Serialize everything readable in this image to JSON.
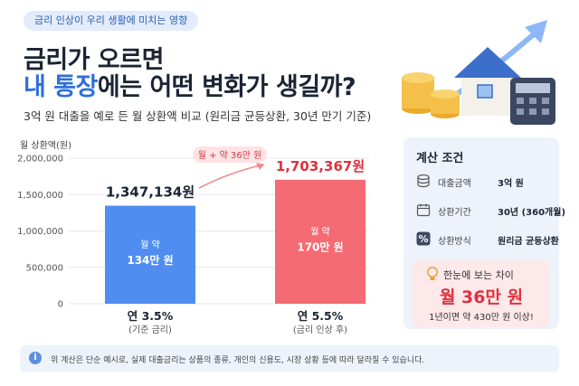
{
  "header": {
    "tag": "금리 인상이 우리 생활에 미치는 영향",
    "title_line1": "금리가 오르면",
    "title_line2_highlight": "내 통장",
    "title_line2_rest": "에는 어떤 변화가 생길까?",
    "subtitle": "3억 원 대출을 예로 든 월 상환액 비교 (원리금 균등상환, 30년 만기 기준)"
  },
  "chart_data": {
    "type": "bar",
    "ylabel": "월 상환액(원)",
    "ylim": [
      0,
      2000000
    ],
    "yticks": [
      "2,000,000",
      "1,500,000",
      "1,000,000",
      "500,000",
      "0"
    ],
    "ytick_values": [
      2000000,
      1500000,
      1000000,
      500000,
      0
    ],
    "categories": [
      "연 3.5%",
      "연 5.5%"
    ],
    "category_notes": [
      "(기준 금리)",
      "(금리 인상 후)"
    ],
    "values": [
      1347134,
      1703367
    ],
    "value_labels": [
      "1,347,134원",
      "1,703,367원"
    ],
    "bar_inner_top": [
      "월 약",
      "월 약"
    ],
    "bar_inner_bottom": [
      "134만 원",
      "170만 원"
    ],
    "colors": [
      "#4f8ef0",
      "#f46b73"
    ],
    "difference_label": "월 + 약 36만 원",
    "grid": true
  },
  "panel": {
    "title": "계산 조건",
    "rows": [
      {
        "label": "대출금액",
        "value": "3억 원",
        "icon": "coins-icon"
      },
      {
        "label": "상환기간",
        "value": "30년 (360개월)",
        "icon": "calendar-icon"
      },
      {
        "label": "상환방식",
        "value": "원리금 균등상환",
        "icon": "percent-icon"
      }
    ],
    "highlight_title": "한눈에 보는 차이",
    "highlight_value": "월 36만 원",
    "highlight_sub": "1년이면 약 430만 원 이상!"
  },
  "footnote": "위 계산은 단순 예시로, 실제 대출금리는 상품의 종류, 개인의 신용도, 시장 상황 등에 따라 달라질 수 있습니다."
}
